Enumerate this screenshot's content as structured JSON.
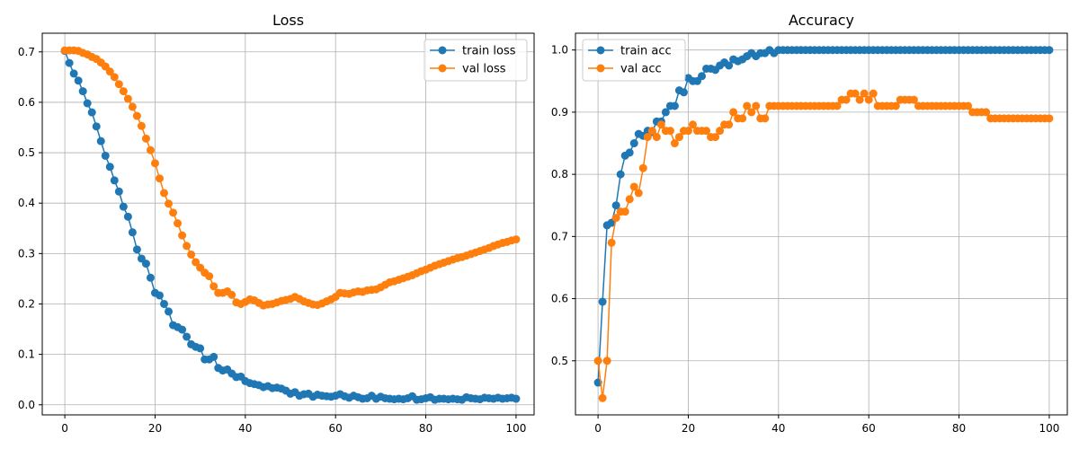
{
  "chart_data": [
    {
      "type": "line",
      "title": "Loss",
      "xlabel": "",
      "ylabel": "",
      "xlim": [
        -5,
        104
      ],
      "ylim": [
        -0.02,
        0.737
      ],
      "xticks": [
        0,
        20,
        40,
        60,
        80,
        100
      ],
      "yticks": [
        0.0,
        0.1,
        0.2,
        0.3,
        0.4,
        0.5,
        0.6,
        0.7
      ],
      "ytick_decimals": 1,
      "grid": true,
      "legend": "top-right",
      "series": [
        {
          "name": "train loss",
          "color": "#1f77b4",
          "values": [
            0.702,
            0.678,
            0.657,
            0.643,
            0.622,
            0.598,
            0.58,
            0.552,
            0.523,
            0.494,
            0.472,
            0.445,
            0.423,
            0.393,
            0.373,
            0.342,
            0.308,
            0.29,
            0.28,
            0.252,
            0.222,
            0.217,
            0.2,
            0.185,
            0.158,
            0.154,
            0.149,
            0.135,
            0.12,
            0.115,
            0.112,
            0.09,
            0.09,
            0.095,
            0.073,
            0.068,
            0.07,
            0.062,
            0.055,
            0.056,
            0.047,
            0.043,
            0.041,
            0.039,
            0.035,
            0.037,
            0.033,
            0.034,
            0.032,
            0.028,
            0.022,
            0.025,
            0.018,
            0.021,
            0.022,
            0.016,
            0.02,
            0.018,
            0.017,
            0.016,
            0.018,
            0.021,
            0.017,
            0.014,
            0.018,
            0.015,
            0.012,
            0.013,
            0.018,
            0.012,
            0.016,
            0.013,
            0.012,
            0.011,
            0.012,
            0.011,
            0.013,
            0.017,
            0.01,
            0.011,
            0.013,
            0.015,
            0.01,
            0.012,
            0.012,
            0.011,
            0.012,
            0.011,
            0.01,
            0.015,
            0.013,
            0.012,
            0.011,
            0.014,
            0.013,
            0.012,
            0.014,
            0.012,
            0.013,
            0.014,
            0.012
          ]
        },
        {
          "name": "val loss",
          "color": "#ff7f0e",
          "values": [
            0.703,
            0.703,
            0.703,
            0.702,
            0.698,
            0.695,
            0.69,
            0.686,
            0.679,
            0.671,
            0.661,
            0.65,
            0.636,
            0.622,
            0.607,
            0.591,
            0.573,
            0.553,
            0.528,
            0.505,
            0.479,
            0.449,
            0.42,
            0.399,
            0.381,
            0.36,
            0.336,
            0.315,
            0.298,
            0.283,
            0.272,
            0.262,
            0.255,
            0.235,
            0.222,
            0.222,
            0.225,
            0.218,
            0.203,
            0.2,
            0.204,
            0.209,
            0.207,
            0.202,
            0.197,
            0.199,
            0.2,
            0.203,
            0.206,
            0.208,
            0.21,
            0.214,
            0.21,
            0.205,
            0.202,
            0.199,
            0.198,
            0.201,
            0.205,
            0.209,
            0.214,
            0.222,
            0.221,
            0.22,
            0.223,
            0.225,
            0.224,
            0.227,
            0.228,
            0.229,
            0.233,
            0.238,
            0.243,
            0.245,
            0.248,
            0.251,
            0.254,
            0.257,
            0.261,
            0.265,
            0.268,
            0.272,
            0.276,
            0.279,
            0.282,
            0.285,
            0.288,
            0.291,
            0.293,
            0.296,
            0.299,
            0.302,
            0.305,
            0.308,
            0.311,
            0.315,
            0.318,
            0.321,
            0.323,
            0.326,
            0.328
          ]
        }
      ]
    },
    {
      "type": "line",
      "title": "Accuracy",
      "xlabel": "",
      "ylabel": "",
      "xlim": [
        -5,
        104
      ],
      "ylim": [
        0.413,
        1.027
      ],
      "xticks": [
        0,
        20,
        40,
        60,
        80,
        100
      ],
      "yticks": [
        0.5,
        0.6,
        0.7,
        0.8,
        0.9,
        1.0
      ],
      "ytick_decimals": 1,
      "grid": true,
      "legend": "top-left",
      "series": [
        {
          "name": "train acc",
          "color": "#1f77b4",
          "values": [
            0.465,
            0.595,
            0.718,
            0.722,
            0.75,
            0.8,
            0.83,
            0.835,
            0.85,
            0.865,
            0.862,
            0.87,
            0.868,
            0.885,
            0.885,
            0.9,
            0.91,
            0.91,
            0.935,
            0.932,
            0.955,
            0.95,
            0.95,
            0.958,
            0.97,
            0.97,
            0.968,
            0.975,
            0.98,
            0.975,
            0.985,
            0.982,
            0.985,
            0.99,
            0.995,
            0.99,
            0.995,
            0.995,
            1.0,
            0.995,
            1.0,
            1.0,
            1.0,
            1.0,
            1.0,
            1.0,
            1.0,
            1.0,
            1.0,
            1.0,
            1.0,
            1.0,
            1.0,
            1.0,
            1.0,
            1.0,
            1.0,
            1.0,
            1.0,
            1.0,
            1.0,
            1.0,
            1.0,
            1.0,
            1.0,
            1.0,
            1.0,
            1.0,
            1.0,
            1.0,
            1.0,
            1.0,
            1.0,
            1.0,
            1.0,
            1.0,
            1.0,
            1.0,
            1.0,
            1.0,
            1.0,
            1.0,
            1.0,
            1.0,
            1.0,
            1.0,
            1.0,
            1.0,
            1.0,
            1.0,
            1.0,
            1.0,
            1.0,
            1.0,
            1.0,
            1.0,
            1.0,
            1.0,
            1.0,
            1.0,
            1.0
          ]
        },
        {
          "name": "val acc",
          "color": "#ff7f0e",
          "values": [
            0.5,
            0.44,
            0.5,
            0.69,
            0.73,
            0.74,
            0.74,
            0.76,
            0.78,
            0.77,
            0.81,
            0.86,
            0.87,
            0.86,
            0.88,
            0.87,
            0.87,
            0.85,
            0.86,
            0.87,
            0.87,
            0.88,
            0.87,
            0.87,
            0.87,
            0.86,
            0.86,
            0.87,
            0.88,
            0.88,
            0.9,
            0.89,
            0.89,
            0.91,
            0.9,
            0.91,
            0.89,
            0.89,
            0.91,
            0.91,
            0.91,
            0.91,
            0.91,
            0.91,
            0.91,
            0.91,
            0.91,
            0.91,
            0.91,
            0.91,
            0.91,
            0.91,
            0.91,
            0.91,
            0.92,
            0.92,
            0.93,
            0.93,
            0.92,
            0.93,
            0.92,
            0.93,
            0.91,
            0.91,
            0.91,
            0.91,
            0.91,
            0.92,
            0.92,
            0.92,
            0.92,
            0.91,
            0.91,
            0.91,
            0.91,
            0.91,
            0.91,
            0.91,
            0.91,
            0.91,
            0.91,
            0.91,
            0.91,
            0.9,
            0.9,
            0.9,
            0.9,
            0.89,
            0.89,
            0.89,
            0.89,
            0.89,
            0.89,
            0.89,
            0.89,
            0.89,
            0.89,
            0.89,
            0.89,
            0.89,
            0.89
          ]
        }
      ]
    }
  ]
}
